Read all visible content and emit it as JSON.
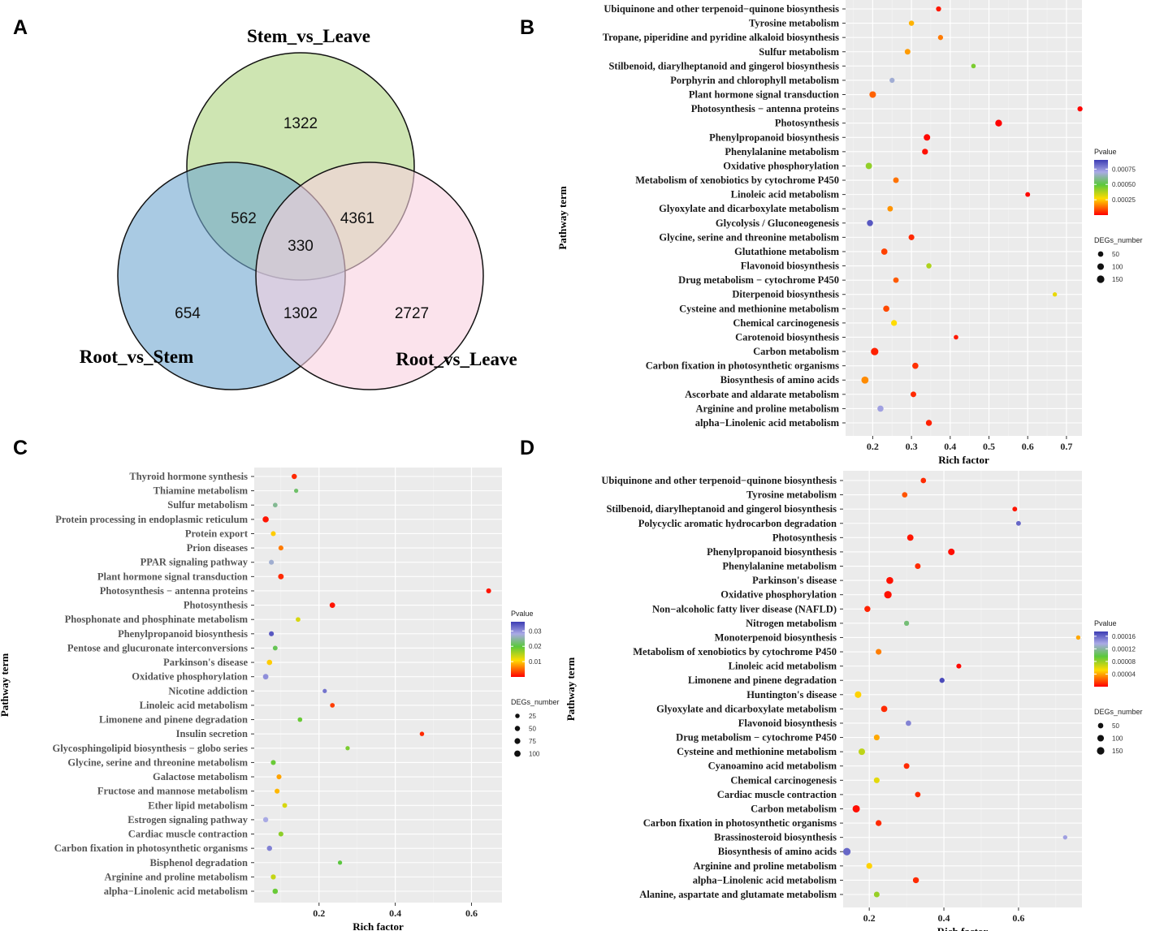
{
  "colors": {
    "panel_bg": "#ebebeb",
    "grid_major": "#ffffff",
    "grid_minor": "#f4f4f4",
    "venn_green": "#c5e0a5",
    "venn_blue": "#6fa6d0",
    "venn_pink": "#f9d0e0"
  },
  "chart_data": [
    {
      "panel": "A",
      "type": "venn",
      "sets": [
        "Stem_vs_Leave",
        "Root_vs_Stem",
        "Root_vs_Leave"
      ],
      "regions": {
        "stem_only": "1322",
        "root_stem_only": "654",
        "root_leave_only": "2727",
        "stem_rootstem": "562",
        "stem_rootleave": "4361",
        "rootstem_rootleave": "1302",
        "all": "330"
      }
    },
    {
      "panel": "B",
      "type": "scatter",
      "xlabel": "Rich factor",
      "ylabel": "Pathway term",
      "xlim": [
        0.13,
        0.74
      ],
      "xticks": [
        0.2,
        0.3,
        0.4,
        0.5,
        0.6,
        0.7
      ],
      "pvalue_range": [
        0,
        0.0009
      ],
      "legend_color_title": "Pvalue",
      "legend_color_ticks": [
        "0.00075",
        "0.00050",
        "0.00025"
      ],
      "legend_color_values": [
        0.00075,
        0.0005,
        0.00025
      ],
      "legend_size_title": "DEGs_number",
      "legend_size_labels": [
        "50",
        "100",
        "150"
      ],
      "legend_size_values": [
        50,
        100,
        150
      ],
      "terms": [
        "Ubiquinone and other terpenoid−quinone biosynthesis",
        "Tyrosine metabolism",
        "Tropane, piperidine and pyridine alkaloid biosynthesis",
        "Sulfur metabolism",
        "Stilbenoid, diarylheptanoid and gingerol biosynthesis",
        "Porphyrin and chlorophyll metabolism",
        "Plant hormone signal transduction",
        "Photosynthesis − antenna proteins",
        "Photosynthesis",
        "Phenylpropanoid biosynthesis",
        "Phenylalanine metabolism",
        "Oxidative phosphorylation",
        "Metabolism of xenobiotics by cytochrome P450",
        "Linoleic acid metabolism",
        "Glyoxylate and dicarboxylate metabolism",
        "Glycolysis / Gluconeogenesis",
        "Glycine, serine and threonine metabolism",
        "Glutathione metabolism",
        "Flavonoid biosynthesis",
        "Drug metabolism − cytochrome P450",
        "Diterpenoid biosynthesis",
        "Cysteine and methionine metabolism",
        "Chemical carcinogenesis",
        "Carotenoid biosynthesis",
        "Carbon metabolism",
        "Carbon fixation in photosynthetic organisms",
        "Biosynthesis of amino acids",
        "Ascorbate and aldarate metabolism",
        "Arginine and proline metabolism",
        "alpha−Linolenic acid metabolism"
      ],
      "x": [
        0.37,
        0.3,
        0.375,
        0.29,
        0.46,
        0.25,
        0.2,
        0.735,
        0.525,
        0.34,
        0.335,
        0.19,
        0.26,
        0.6,
        0.245,
        0.193,
        0.3,
        0.23,
        0.345,
        0.26,
        0.67,
        0.235,
        0.255,
        0.415,
        0.205,
        0.31,
        0.18,
        0.305,
        0.22,
        0.345
      ],
      "pvalue": [
        3e-05,
        0.00022,
        0.00015,
        0.00019,
        0.00045,
        0.00068,
        0.00012,
        5e-06,
        3e-06,
        1e-05,
        2e-05,
        0.00042,
        0.00014,
        1e-05,
        0.00018,
        0.00085,
        5e-05,
        8e-05,
        0.00038,
        0.00011,
        0.0003,
        9e-05,
        0.00027,
        3e-05,
        4e-05,
        6e-05,
        0.00017,
        5e-05,
        0.00072,
        4e-05
      ],
      "degs": [
        40,
        45,
        40,
        60,
        25,
        40,
        100,
        40,
        110,
        95,
        70,
        90,
        60,
        30,
        55,
        80,
        65,
        85,
        45,
        55,
        20,
        80,
        70,
        25,
        150,
        80,
        130,
        60,
        80,
        75
      ]
    },
    {
      "panel": "C",
      "type": "scatter",
      "xlabel": "Rich factor",
      "ylabel": "Pathway term",
      "xlim": [
        0.03,
        0.68
      ],
      "xticks": [
        0.2,
        0.4,
        0.6
      ],
      "pvalue_range": [
        0,
        0.036
      ],
      "legend_color_title": "Pvalue",
      "legend_color_ticks": [
        "0.03",
        "0.02",
        "0.01"
      ],
      "legend_color_values": [
        0.03,
        0.02,
        0.01
      ],
      "legend_size_title": "DEGs_number",
      "legend_size_labels": [
        "25",
        "50",
        "75",
        "100"
      ],
      "legend_size_values": [
        25,
        50,
        75,
        100
      ],
      "terms": [
        "Thyroid hormone synthesis",
        "Thiamine metabolism",
        "Sulfur metabolism",
        "Protein processing in endoplasmic reticulum",
        "Protein export",
        "Prion diseases",
        "PPAR signaling pathway",
        "Plant hormone signal transduction",
        "Photosynthesis − antenna proteins",
        "Photosynthesis",
        "Phosphonate and phosphinate metabolism",
        "Phenylpropanoid biosynthesis",
        "Pentose and glucuronate interconversions",
        "Parkinson's disease",
        "Oxidative phosphorylation",
        "Nicotine addiction",
        "Linoleic acid metabolism",
        "Limonene and pinene degradation",
        "Insulin secretion",
        "Glycosphingolipid biosynthesis − globo series",
        "Glycine, serine and threonine metabolism",
        "Galactose metabolism",
        "Fructose and mannose metabolism",
        "Ether lipid metabolism",
        "Estrogen signaling pathway",
        "Cardiac muscle contraction",
        "Carbon fixation in photosynthetic organisms",
        "Bisphenol degradation",
        "Arginine and proline metabolism",
        "alpha−Linolenic acid metabolism"
      ],
      "x": [
        0.135,
        0.14,
        0.085,
        0.06,
        0.08,
        0.1,
        0.075,
        0.1,
        0.645,
        0.235,
        0.145,
        0.075,
        0.085,
        0.07,
        0.06,
        0.215,
        0.235,
        0.15,
        0.47,
        0.275,
        0.08,
        0.095,
        0.09,
        0.11,
        0.06,
        0.1,
        0.07,
        0.255,
        0.08,
        0.085
      ],
      "pvalue": [
        0.002,
        0.022,
        0.024,
        0.001,
        0.01,
        0.006,
        0.027,
        0.002,
        0.001,
        0.001,
        0.013,
        0.034,
        0.021,
        0.01,
        0.03,
        0.032,
        0.003,
        0.019,
        0.002,
        0.018,
        0.019,
        0.008,
        0.009,
        0.013,
        0.028,
        0.017,
        0.031,
        0.02,
        0.014,
        0.019
      ],
      "degs": [
        50,
        20,
        30,
        90,
        40,
        40,
        40,
        65,
        40,
        60,
        30,
        40,
        35,
        55,
        60,
        20,
        30,
        30,
        25,
        20,
        40,
        40,
        40,
        35,
        50,
        40,
        50,
        20,
        45,
        55
      ]
    },
    {
      "panel": "D",
      "type": "scatter",
      "xlabel": "Rich factor",
      "ylabel": "Pathway term",
      "xlim": [
        0.13,
        0.77
      ],
      "xticks": [
        0.2,
        0.4,
        0.6
      ],
      "pvalue_range": [
        0,
        0.000175
      ],
      "legend_color_title": "Pvalue",
      "legend_color_ticks": [
        "0.00016",
        "0.00012",
        "0.00008",
        "0.00004"
      ],
      "legend_color_values": [
        0.00016,
        0.00012,
        8e-05,
        4e-05
      ],
      "legend_size_title": "DEGs_number",
      "legend_size_labels": [
        "50",
        "100",
        "150"
      ],
      "legend_size_values": [
        50,
        100,
        150
      ],
      "terms": [
        "Ubiquinone and other terpenoid−quinone biosynthesis",
        "Tyrosine metabolism",
        "Stilbenoid, diarylheptanoid and gingerol biosynthesis",
        "Polycyclic aromatic hydrocarbon degradation",
        "Photosynthesis",
        "Phenylpropanoid biosynthesis",
        "Phenylalanine metabolism",
        "Parkinson's disease",
        "Oxidative phosphorylation",
        "Non−alcoholic fatty liver disease (NAFLD)",
        "Nitrogen metabolism",
        "Monoterpenoid biosynthesis",
        "Metabolism of xenobiotics by cytochrome P450",
        "Linoleic acid metabolism",
        "Limonene and pinene degradation",
        "Huntington's disease",
        "Glyoxylate and dicarboxylate metabolism",
        "Flavonoid biosynthesis",
        "Drug metabolism − cytochrome P450",
        "Cysteine and methionine metabolism",
        "Cyanoamino acid metabolism",
        "Chemical carcinogenesis",
        "Cardiac muscle contraction",
        "Carbon metabolism",
        "Carbon fixation in photosynthetic organisms",
        "Brassinosteroid biosynthesis",
        "Biosynthesis of amino acids",
        "Arginine and proline metabolism",
        "alpha−Linolenic acid metabolism",
        "Alanine, aspartate and glutamate metabolism"
      ],
      "x": [
        0.345,
        0.295,
        0.59,
        0.6,
        0.31,
        0.42,
        0.33,
        0.255,
        0.25,
        0.195,
        0.3,
        0.76,
        0.225,
        0.44,
        0.395,
        0.17,
        0.24,
        0.305,
        0.22,
        0.18,
        0.3,
        0.22,
        0.33,
        0.165,
        0.225,
        0.725,
        0.14,
        0.2,
        0.325,
        0.22
      ],
      "pvalue": [
        1e-05,
        2e-05,
        5e-06,
        0.00016,
        5e-06,
        3e-06,
        1e-05,
        4e-06,
        4e-06,
        8e-06,
        0.00011,
        4e-05,
        3e-05,
        2e-06,
        0.00017,
        5e-05,
        1e-05,
        0.00015,
        4e-05,
        7e-05,
        1e-05,
        6e-05,
        1e-05,
        3e-06,
        1e-05,
        0.00014,
        0.00016,
        5e-05,
        1e-05,
        8e-05
      ],
      "degs": [
        50,
        50,
        30,
        30,
        90,
        100,
        60,
        120,
        150,
        75,
        40,
        20,
        65,
        35,
        40,
        100,
        85,
        50,
        65,
        100,
        60,
        65,
        55,
        140,
        70,
        20,
        150,
        70,
        75,
        60
      ]
    }
  ]
}
